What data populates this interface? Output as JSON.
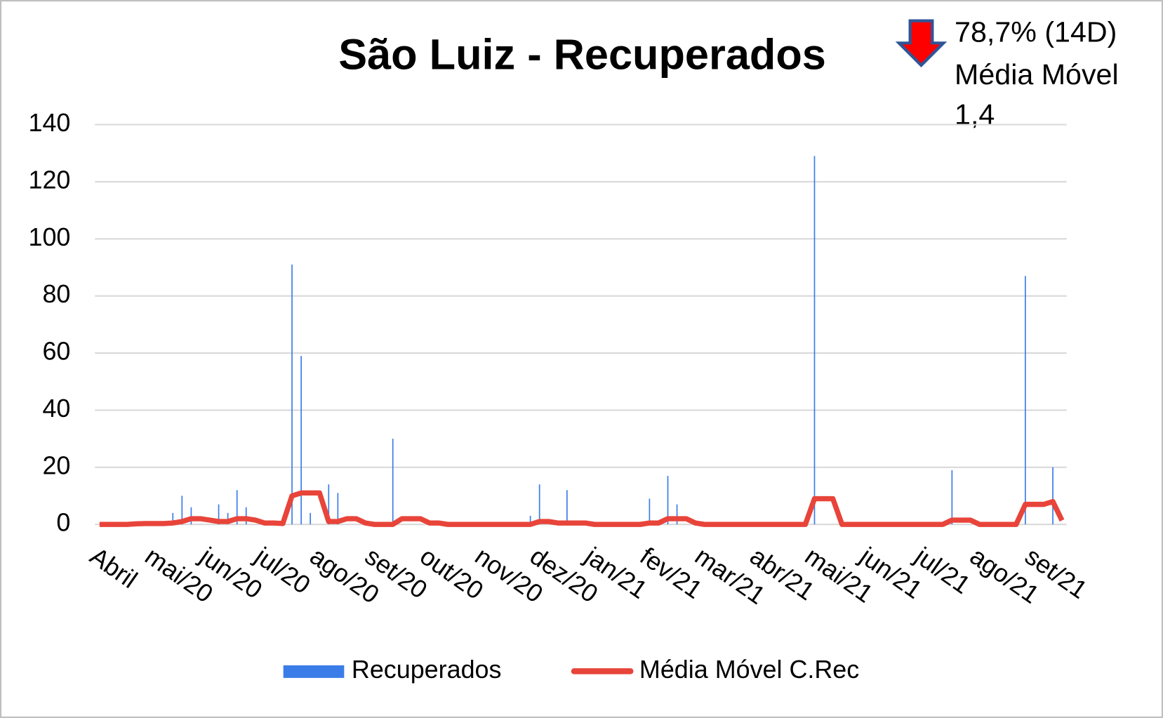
{
  "chart_data": {
    "type": "combo",
    "title": "São Luiz - Recuperados",
    "annotations": [
      "78,7% (14D)",
      "Média Móvel",
      "1,4"
    ],
    "categories": [
      "Abril",
      null,
      null,
      null,
      null,
      null,
      "mai/20",
      null,
      null,
      null,
      null,
      null,
      "jun/20",
      null,
      null,
      null,
      null,
      null,
      "jul/20",
      null,
      null,
      null,
      null,
      null,
      "ago/20",
      null,
      null,
      null,
      null,
      null,
      "set/20",
      null,
      null,
      null,
      null,
      null,
      "out/20",
      null,
      null,
      null,
      null,
      null,
      "nov/20",
      null,
      null,
      null,
      null,
      null,
      "dez/20",
      null,
      null,
      null,
      null,
      null,
      "jan/21",
      null,
      null,
      null,
      null,
      null,
      "fev/21",
      null,
      null,
      null,
      null,
      null,
      "mar/21",
      null,
      null,
      null,
      null,
      null,
      "abr/21",
      null,
      null,
      null,
      null,
      null,
      "mai/21",
      null,
      null,
      null,
      null,
      null,
      "jun/21",
      null,
      null,
      null,
      null,
      null,
      "jul/21",
      null,
      null,
      null,
      null,
      null,
      "ago/21",
      null,
      null,
      null,
      null,
      null,
      "set/21",
      null,
      null,
      null
    ],
    "series": [
      {
        "name": "Recuperados",
        "type": "bar",
        "color": "#3b7de8",
        "values": [
          0,
          0,
          0,
          0,
          0,
          0,
          0,
          0,
          4,
          10,
          6,
          0,
          0,
          7,
          4,
          12,
          6,
          0,
          0,
          0,
          0,
          91,
          59,
          4,
          0,
          14,
          11,
          0,
          0,
          0,
          0,
          0,
          30,
          0,
          0,
          0,
          0,
          0,
          0,
          0,
          0,
          0,
          0,
          0,
          0,
          0,
          0,
          3,
          14,
          0,
          0,
          12,
          0,
          0,
          0,
          0,
          0,
          0,
          0,
          0,
          9,
          0,
          17,
          7,
          0,
          0,
          0,
          0,
          0,
          0,
          0,
          0,
          0,
          0,
          0,
          0,
          0,
          0,
          129,
          0,
          0,
          0,
          0,
          0,
          0,
          0,
          0,
          0,
          0,
          0,
          0,
          0,
          0,
          19,
          0,
          0,
          0,
          0,
          0,
          0,
          0,
          87,
          0,
          0,
          20,
          0
        ]
      },
      {
        "name": "Média Móvel C.Rec",
        "type": "line",
        "color": "#e8443a",
        "values": [
          0,
          0,
          0,
          0,
          0.2,
          0.3,
          0.3,
          0.3,
          0.5,
          1,
          2,
          2,
          1.5,
          1,
          1,
          2,
          2,
          1.5,
          0.5,
          0.5,
          0.3,
          10,
          11,
          11,
          11,
          1,
          1,
          2,
          2,
          0.5,
          0,
          0,
          0,
          2,
          2,
          2,
          0.5,
          0.5,
          0,
          0,
          0,
          0,
          0,
          0,
          0,
          0,
          0,
          0,
          1,
          1,
          0.5,
          0.5,
          0.5,
          0.5,
          0,
          0,
          0,
          0,
          0,
          0,
          0.5,
          0.5,
          2,
          2,
          2,
          0.5,
          0,
          0,
          0,
          0,
          0,
          0,
          0,
          0,
          0,
          0,
          0,
          0,
          9,
          9,
          9,
          0,
          0,
          0,
          0,
          0,
          0,
          0,
          0,
          0,
          0,
          0,
          0,
          1.5,
          1.5,
          1.5,
          0,
          0,
          0,
          0,
          0,
          7,
          7,
          7,
          8,
          1.4
        ]
      }
    ],
    "ylim": [
      0,
      140
    ],
    "yticks": [
      0,
      20,
      40,
      60,
      80,
      100,
      120,
      140
    ],
    "grid": true,
    "legend": "bottom"
  }
}
